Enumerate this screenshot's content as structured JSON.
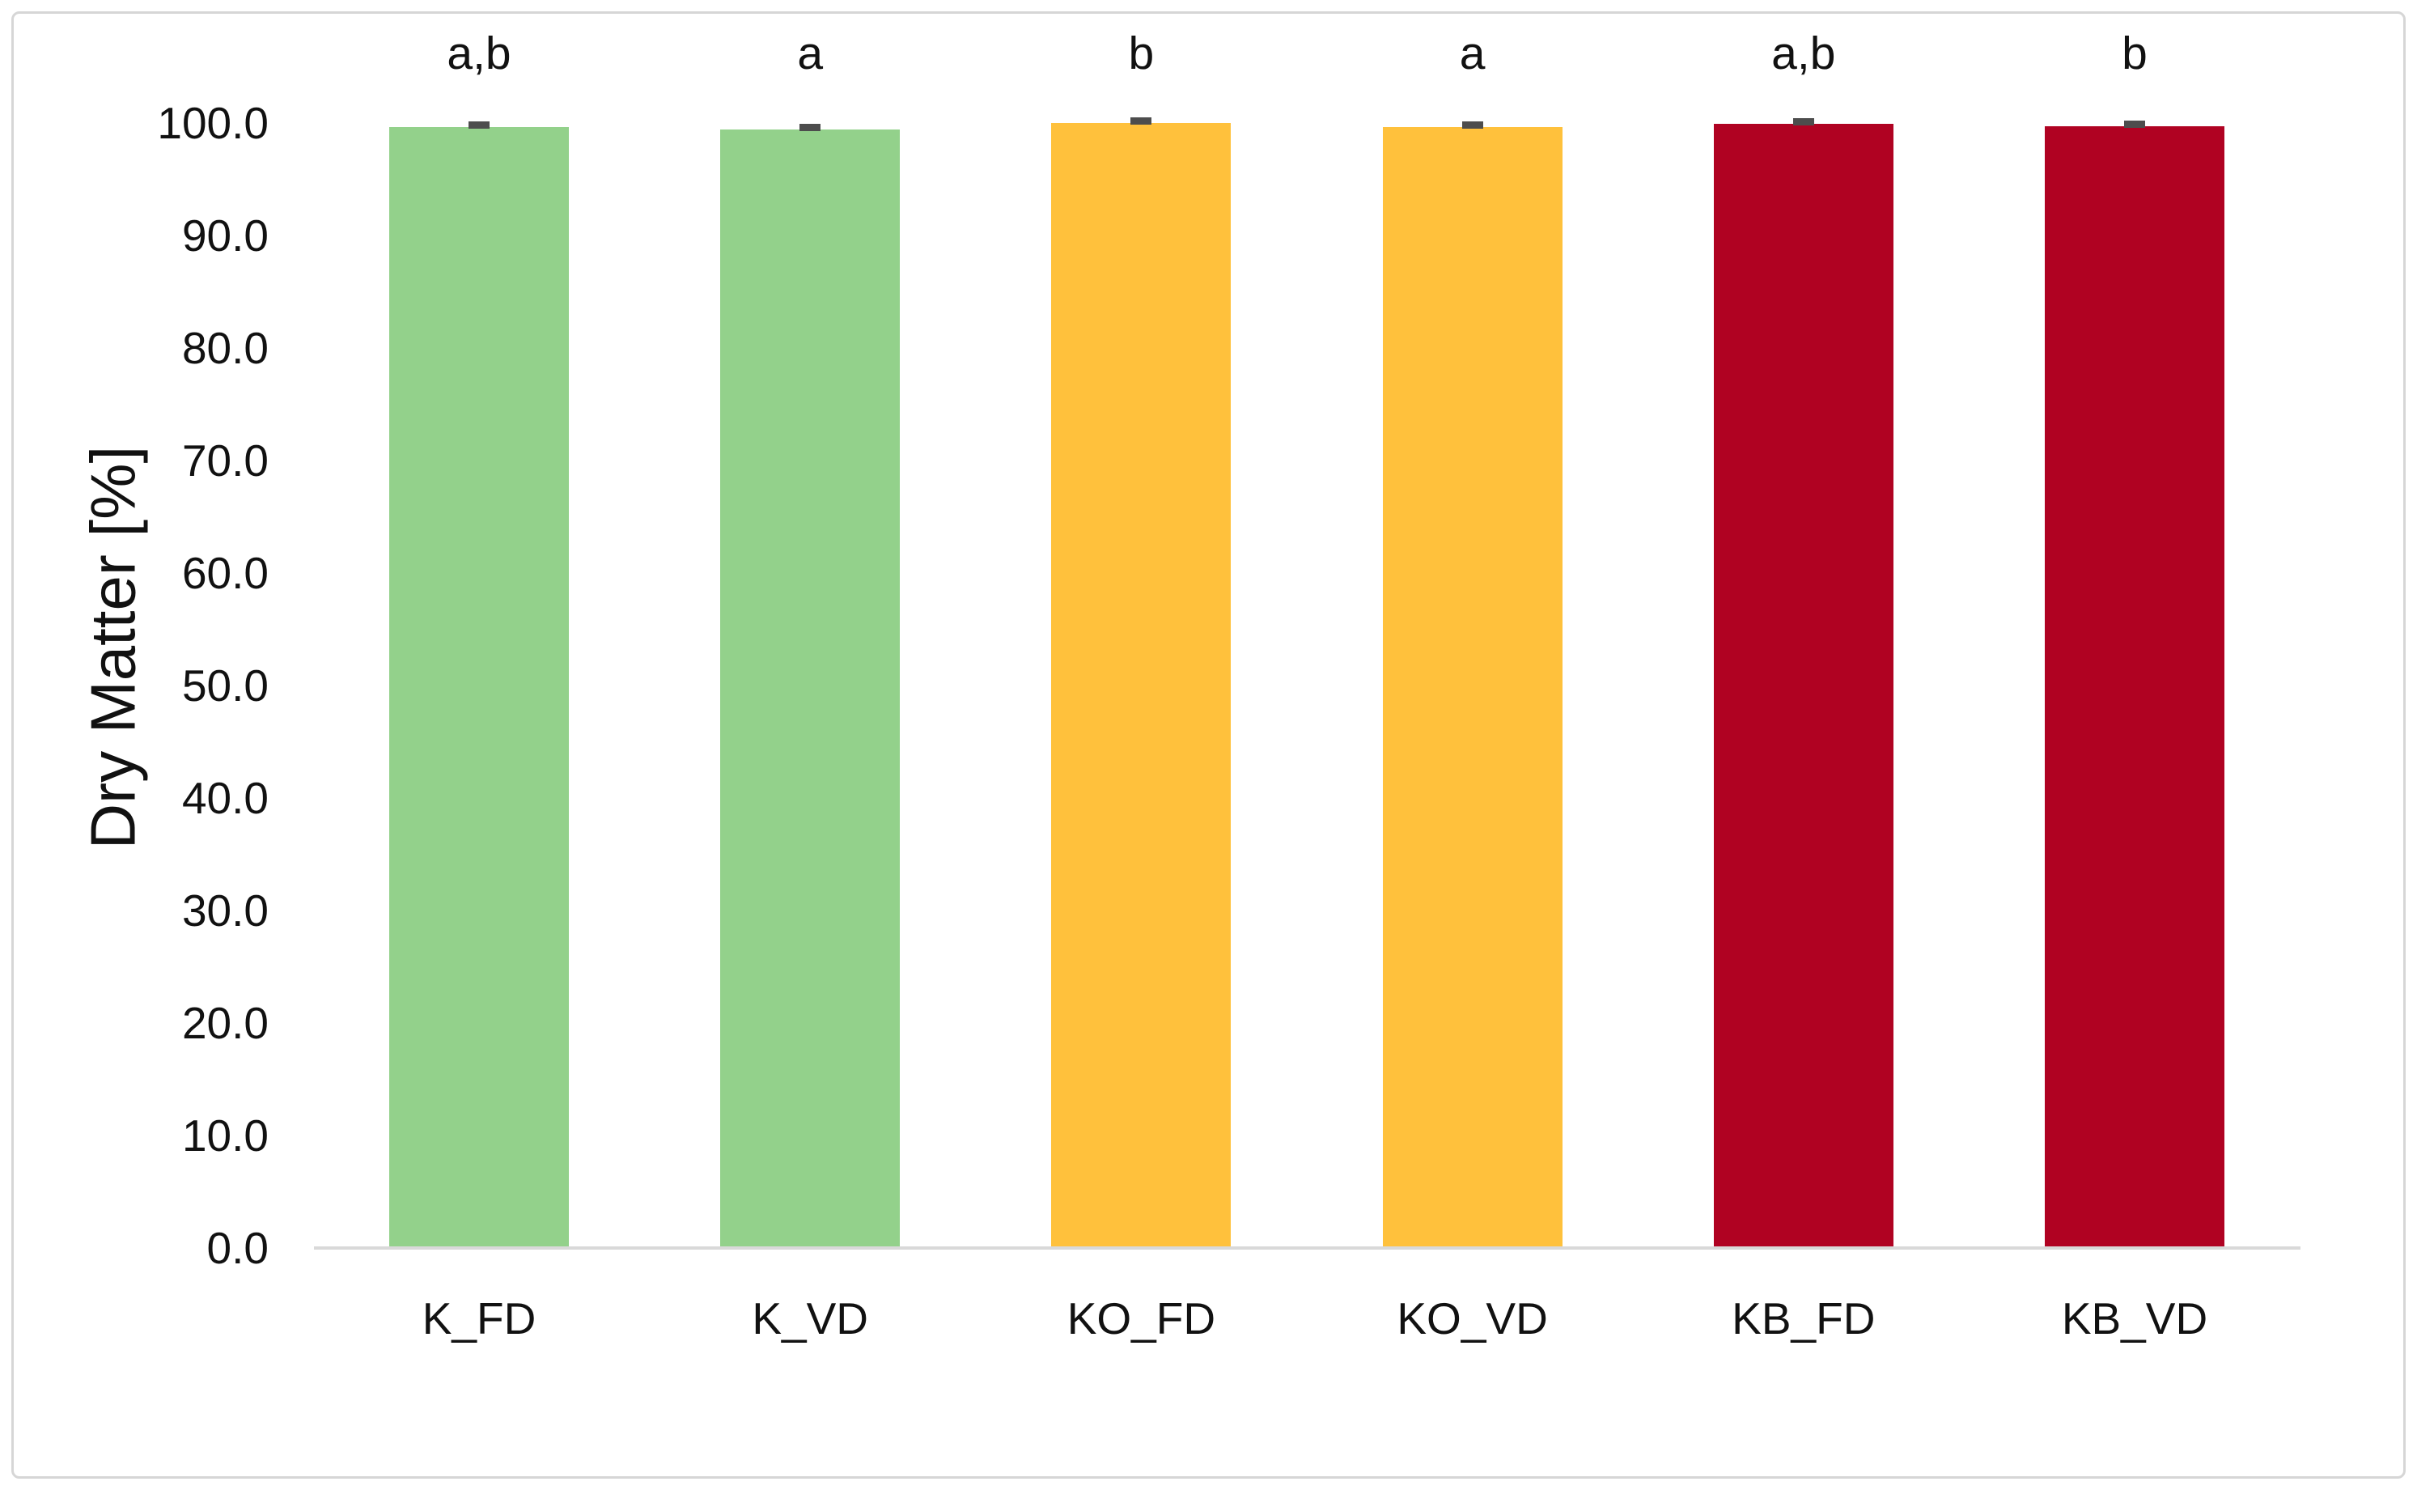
{
  "chart_data": {
    "type": "bar",
    "title": "",
    "ylabel": "Dry Matter [%]",
    "xlabel": "",
    "ylim": [
      0,
      100
    ],
    "ytick_step": 10,
    "ytick_labels": [
      "0.0",
      "10.0",
      "20.0",
      "30.0",
      "40.0",
      "50.0",
      "60.0",
      "70.0",
      "80.0",
      "90.0",
      "100.0"
    ],
    "grid": false,
    "legend": "none",
    "categories": [
      "K_FD",
      "K_VD",
      "KO_FD",
      "KO_VD",
      "KB_FD",
      "KB_VD"
    ],
    "values": [
      99.6,
      99.4,
      100.0,
      99.6,
      99.9,
      99.7
    ],
    "error_bars_visible": true,
    "error_values": [
      0.2,
      0.2,
      0.2,
      0.2,
      0.2,
      0.2
    ],
    "significance_labels": [
      "a,b",
      "a",
      "b",
      "a",
      "a,b",
      "b"
    ],
    "bar_colors": [
      "#93D18B",
      "#93D18B",
      "#FFC13C",
      "#FFC13C",
      "#B00222",
      "#B00222"
    ],
    "colors": {
      "green_bars": "#93D18B",
      "orange_bars": "#FFC13C",
      "dark_red_bars": "#B00222",
      "axis_line": "#D9D9D9",
      "error_cap": "#4D4D4D",
      "text": "#111111",
      "frame_border": "#D6D6D6",
      "background": "#FFFFFF"
    }
  }
}
